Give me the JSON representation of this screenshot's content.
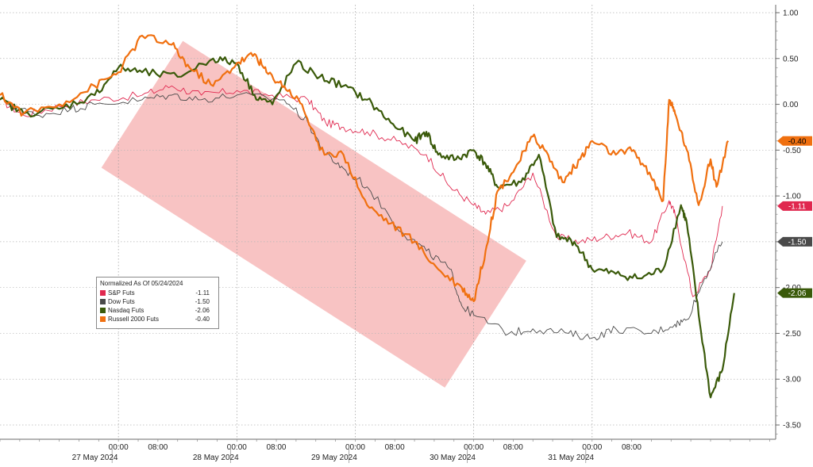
{
  "chart_data": {
    "type": "line",
    "ylim": [
      -3.5,
      1.0
    ],
    "y_ticks": [
      "1.00",
      "0.50",
      "0.00",
      "-0.50",
      "-1.00",
      "-1.50",
      "-2.00",
      "-2.50",
      "-3.00",
      "-3.50"
    ],
    "y_tick_values": [
      1.0,
      0.5,
      0.0,
      -0.5,
      -1.0,
      -1.5,
      -2.0,
      -2.5,
      -3.0,
      -3.5
    ],
    "grid": true,
    "legend_placement": "bottom-left",
    "x_time_labels": [
      {
        "t": 1.0,
        "label": "00:00"
      },
      {
        "t": 1.333,
        "label": "08:00"
      },
      {
        "t": 2.0,
        "label": "00:00"
      },
      {
        "t": 2.333,
        "label": "08:00"
      },
      {
        "t": 3.0,
        "label": "00:00"
      },
      {
        "t": 3.333,
        "label": "08:00"
      },
      {
        "t": 4.0,
        "label": "00:00"
      },
      {
        "t": 4.333,
        "label": "08:00"
      },
      {
        "t": 5.0,
        "label": "00:00"
      },
      {
        "t": 5.333,
        "label": "08:00"
      }
    ],
    "x_date_labels": [
      "27 May 2024",
      "28 May 2024",
      "29 May 2024",
      "30 May 2024",
      "31 May 2024"
    ],
    "annotation_band": {
      "color": "#f4a3a3",
      "from": {
        "t": 1.2,
        "y": 0.0
      },
      "to": {
        "t": 4.1,
        "y": -2.4
      }
    },
    "legend": {
      "title": "Normalized As Of 05/24/2024",
      "entries": [
        {
          "name": "S&P Futs",
          "value": "-1.11",
          "color": "#e0284f"
        },
        {
          "name": "Dow Futs",
          "value": "-1.50",
          "color": "#4a4a4a"
        },
        {
          "name": "Nasdaq Futs",
          "value": "-2.06",
          "color": "#3a5a0a"
        },
        {
          "name": "Russell 2000 Futs",
          "value": "-0.40",
          "color": "#f07010"
        }
      ]
    },
    "end_labels": [
      {
        "series": "Russell 2000 Futs",
        "text": "-0.40",
        "value": -0.4,
        "bg": "#f07010",
        "fg": "#000000"
      },
      {
        "series": "S&P Futs",
        "text": "-1.11",
        "value": -1.11,
        "bg": "#e0284f",
        "fg": "#ffffff"
      },
      {
        "series": "Dow Futs",
        "text": "-1.50",
        "value": -1.5,
        "bg": "#4a4a4a",
        "fg": "#ffffff"
      },
      {
        "series": "Nasdaq Futs",
        "text": "-2.06",
        "value": -2.06,
        "bg": "#3a5a0a",
        "fg": "#ffffff"
      }
    ],
    "series": [
      {
        "name": "S&P Futs",
        "color": "#e0284f",
        "width": 0.9,
        "points": [
          [
            0.0,
            0.05
          ],
          [
            0.2,
            -0.12
          ],
          [
            0.5,
            -0.02
          ],
          [
            0.8,
            0.05
          ],
          [
            1.2,
            0.1
          ],
          [
            1.45,
            0.2
          ],
          [
            1.7,
            0.1
          ],
          [
            2.0,
            0.15
          ],
          [
            2.3,
            0.1
          ],
          [
            2.6,
            0.05
          ],
          [
            2.75,
            -0.2
          ],
          [
            2.9,
            -0.25
          ],
          [
            3.1,
            -0.3
          ],
          [
            3.35,
            -0.4
          ],
          [
            3.6,
            -0.55
          ],
          [
            3.8,
            -0.9
          ],
          [
            4.0,
            -1.1
          ],
          [
            4.1,
            -1.2
          ],
          [
            4.3,
            -1.1
          ],
          [
            4.5,
            -0.75
          ],
          [
            4.7,
            -1.45
          ],
          [
            4.9,
            -1.5
          ],
          [
            5.1,
            -1.45
          ],
          [
            5.3,
            -1.4
          ],
          [
            5.5,
            -1.5
          ],
          [
            5.65,
            -1.05
          ],
          [
            5.7,
            -1.2
          ],
          [
            5.85,
            -2.1
          ],
          [
            6.0,
            -1.8
          ],
          [
            6.1,
            -1.11
          ]
        ]
      },
      {
        "name": "Dow Futs",
        "color": "#4a4a4a",
        "width": 0.9,
        "points": [
          [
            0.0,
            0.05
          ],
          [
            0.3,
            -0.12
          ],
          [
            0.6,
            -0.05
          ],
          [
            0.8,
            0.0
          ],
          [
            1.2,
            0.05
          ],
          [
            1.45,
            0.1
          ],
          [
            1.7,
            0.05
          ],
          [
            2.0,
            0.1
          ],
          [
            2.4,
            0.05
          ],
          [
            2.6,
            -0.2
          ],
          [
            2.75,
            -0.55
          ],
          [
            2.9,
            -0.7
          ],
          [
            3.1,
            -0.9
          ],
          [
            3.4,
            -1.4
          ],
          [
            3.6,
            -1.6
          ],
          [
            3.8,
            -1.8
          ],
          [
            3.9,
            -2.2
          ],
          [
            4.0,
            -2.3
          ],
          [
            4.3,
            -2.5
          ],
          [
            4.5,
            -2.45
          ],
          [
            4.8,
            -2.5
          ],
          [
            5.0,
            -2.55
          ],
          [
            5.2,
            -2.45
          ],
          [
            5.5,
            -2.5
          ],
          [
            5.7,
            -2.4
          ],
          [
            5.8,
            -2.35
          ],
          [
            5.95,
            -1.9
          ],
          [
            6.1,
            -1.5
          ]
        ]
      },
      {
        "name": "Nasdaq Futs",
        "color": "#3a5a0a",
        "width": 2.2,
        "points": [
          [
            0.0,
            0.05
          ],
          [
            0.2,
            -0.1
          ],
          [
            0.5,
            -0.05
          ],
          [
            0.8,
            0.1
          ],
          [
            1.0,
            0.4
          ],
          [
            1.2,
            0.35
          ],
          [
            1.5,
            0.3
          ],
          [
            1.8,
            0.5
          ],
          [
            2.0,
            0.45
          ],
          [
            2.15,
            0.1
          ],
          [
            2.3,
            0.0
          ],
          [
            2.5,
            0.45
          ],
          [
            2.7,
            0.3
          ],
          [
            2.9,
            0.2
          ],
          [
            3.1,
            0.05
          ],
          [
            3.3,
            -0.2
          ],
          [
            3.5,
            -0.4
          ],
          [
            3.6,
            -0.3
          ],
          [
            3.7,
            -0.55
          ],
          [
            3.85,
            -0.6
          ],
          [
            4.0,
            -0.5
          ],
          [
            4.1,
            -0.65
          ],
          [
            4.2,
            -0.9
          ],
          [
            4.4,
            -0.85
          ],
          [
            4.55,
            -0.55
          ],
          [
            4.7,
            -1.45
          ],
          [
            4.85,
            -1.5
          ],
          [
            5.0,
            -1.8
          ],
          [
            5.2,
            -1.85
          ],
          [
            5.4,
            -1.9
          ],
          [
            5.6,
            -1.8
          ],
          [
            5.75,
            -1.1
          ],
          [
            5.8,
            -1.3
          ],
          [
            5.9,
            -2.3
          ],
          [
            6.0,
            -3.2
          ],
          [
            6.1,
            -2.9
          ],
          [
            6.2,
            -2.06
          ]
        ]
      },
      {
        "name": "Russell 2000 Futs",
        "color": "#f07010",
        "width": 2.2,
        "points": [
          [
            0.0,
            0.1
          ],
          [
            0.2,
            -0.1
          ],
          [
            0.5,
            0.0
          ],
          [
            0.8,
            0.2
          ],
          [
            1.0,
            0.35
          ],
          [
            1.2,
            0.75
          ],
          [
            1.45,
            0.65
          ],
          [
            1.6,
            0.4
          ],
          [
            1.8,
            0.2
          ],
          [
            2.0,
            0.45
          ],
          [
            2.15,
            0.55
          ],
          [
            2.25,
            0.35
          ],
          [
            2.4,
            0.2
          ],
          [
            2.55,
            0.0
          ],
          [
            2.7,
            -0.5
          ],
          [
            2.9,
            -0.55
          ],
          [
            3.1,
            -1.1
          ],
          [
            3.3,
            -1.3
          ],
          [
            3.5,
            -1.5
          ],
          [
            3.7,
            -1.8
          ],
          [
            3.9,
            -2.0
          ],
          [
            4.0,
            -2.15
          ],
          [
            4.1,
            -1.6
          ],
          [
            4.2,
            -0.95
          ],
          [
            4.35,
            -0.7
          ],
          [
            4.5,
            -0.35
          ],
          [
            4.6,
            -0.5
          ],
          [
            4.75,
            -0.85
          ],
          [
            4.9,
            -0.6
          ],
          [
            5.0,
            -0.4
          ],
          [
            5.2,
            -0.55
          ],
          [
            5.35,
            -0.5
          ],
          [
            5.5,
            -0.8
          ],
          [
            5.6,
            -1.05
          ],
          [
            5.65,
            0.05
          ],
          [
            5.7,
            -0.1
          ],
          [
            5.8,
            -0.5
          ],
          [
            5.9,
            -1.1
          ],
          [
            6.0,
            -0.6
          ],
          [
            6.05,
            -0.9
          ],
          [
            6.15,
            -0.4
          ]
        ]
      }
    ]
  }
}
